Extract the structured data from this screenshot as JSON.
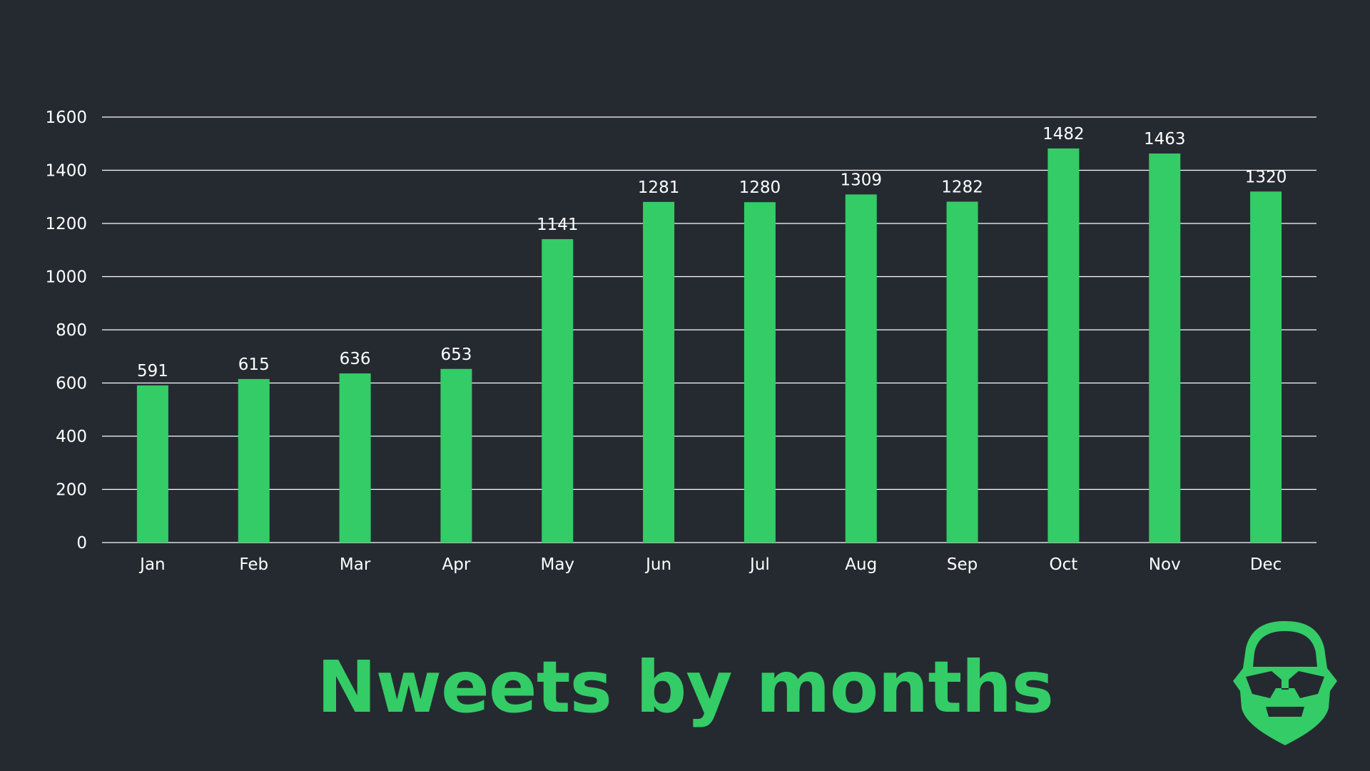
{
  "page": {
    "title": "Nweets by months",
    "logo_icon": "bearded-face-icon"
  },
  "colors": {
    "background": "#252a31",
    "accent": "#34cc66",
    "text": "#ffffff",
    "gridline": "#ffffff"
  },
  "chart_data": {
    "type": "bar",
    "title": "",
    "xlabel": "",
    "ylabel": "",
    "categories": [
      "Jan",
      "Feb",
      "Mar",
      "Apr",
      "May",
      "Jun",
      "Jul",
      "Aug",
      "Sep",
      "Oct",
      "Nov",
      "Dec"
    ],
    "values": [
      591,
      615,
      636,
      653,
      1141,
      1281,
      1280,
      1309,
      1282,
      1482,
      1463,
      1320
    ],
    "ylim": [
      0,
      1600
    ],
    "yticks": [
      0,
      200,
      400,
      600,
      800,
      1000,
      1200,
      1400,
      1600
    ],
    "grid": true,
    "legend": "none",
    "data_labels": true
  }
}
